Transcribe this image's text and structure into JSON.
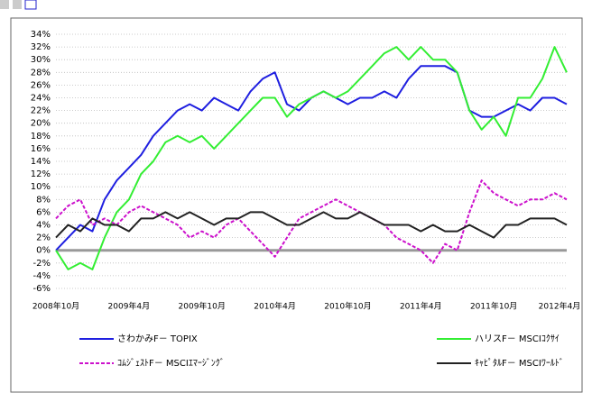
{
  "chart_data": {
    "type": "line",
    "categories": [
      "2008年10月",
      null,
      null,
      null,
      null,
      null,
      "2009年4月",
      null,
      null,
      null,
      null,
      null,
      "2009年10月",
      null,
      null,
      null,
      null,
      null,
      "2010年4月",
      null,
      null,
      null,
      null,
      null,
      "2010年10月",
      null,
      null,
      null,
      null,
      null,
      "2011年4月",
      null,
      null,
      null,
      null,
      null,
      "2011年10月",
      null,
      null,
      null,
      null,
      null,
      "2012年4月"
    ],
    "ylim": [
      -6,
      34
    ],
    "yticks": [
      {
        "value": -6,
        "label": "-6%"
      },
      {
        "value": -4,
        "label": "-4%"
      },
      {
        "value": -2,
        "label": "-2%"
      },
      {
        "value": 0,
        "label": "0%"
      },
      {
        "value": 2,
        "label": "2%"
      },
      {
        "value": 4,
        "label": "4%"
      },
      {
        "value": 6,
        "label": "6%"
      },
      {
        "value": 8,
        "label": "8%"
      },
      {
        "value": 10,
        "label": "10%"
      },
      {
        "value": 12,
        "label": "12%"
      },
      {
        "value": 14,
        "label": "14%"
      },
      {
        "value": 16,
        "label": "16%"
      },
      {
        "value": 18,
        "label": "18%"
      },
      {
        "value": 20,
        "label": "20%"
      },
      {
        "value": 22,
        "label": "22%"
      },
      {
        "value": 24,
        "label": "24%"
      },
      {
        "value": 26,
        "label": "26%"
      },
      {
        "value": 28,
        "label": "28%"
      },
      {
        "value": 30,
        "label": "30%"
      },
      {
        "value": 32,
        "label": "32%"
      },
      {
        "value": 34,
        "label": "34%"
      }
    ],
    "grid": true,
    "series": [
      {
        "name": "さわかみF－ TOPIX",
        "color": "#1f1fe0",
        "dashed": false,
        "values": [
          0,
          2,
          4,
          3,
          8,
          11,
          13,
          15,
          18,
          20,
          22,
          23,
          22,
          24,
          23,
          22,
          25,
          27,
          28,
          23,
          22,
          24,
          25,
          24,
          23,
          24,
          24,
          25,
          24,
          27,
          29,
          29,
          29,
          28,
          22,
          21,
          21,
          22,
          23,
          22,
          24,
          24,
          23
        ]
      },
      {
        "name": "ハリスF－ MSCIｺｸｻｲ",
        "color": "#33ee33",
        "dashed": false,
        "values": [
          0,
          -3,
          -2,
          -3,
          2,
          6,
          8,
          12,
          14,
          17,
          18,
          17,
          18,
          16,
          18,
          20,
          22,
          24,
          24,
          21,
          23,
          24,
          25,
          24,
          25,
          27,
          29,
          31,
          32,
          30,
          32,
          30,
          30,
          28,
          22,
          19,
          21,
          18,
          24,
          24,
          27,
          32,
          28
        ]
      },
      {
        "name": "ｺﾑｼﾞｪｽﾄF－ MSCIｴﾏｰｼﾞﾝｸﾞ",
        "color": "#cc11cc",
        "dashed": true,
        "values": [
          5,
          7,
          8,
          4,
          5,
          4,
          6,
          7,
          6,
          5,
          4,
          2,
          3,
          2,
          4,
          5,
          3,
          1,
          -1,
          2,
          5,
          6,
          7,
          8,
          7,
          6,
          5,
          4,
          2,
          1,
          0,
          -2,
          1,
          0,
          6,
          11,
          9,
          8,
          7,
          8,
          8,
          9,
          8
        ]
      },
      {
        "name": "ｷｬﾋﾟﾀﾙF－ MSCIﾜｰﾙﾄﾞ",
        "color": "#222222",
        "dashed": false,
        "values": [
          2,
          4,
          3,
          5,
          4,
          4,
          3,
          5,
          5,
          6,
          5,
          6,
          5,
          4,
          5,
          5,
          6,
          6,
          5,
          4,
          4,
          5,
          6,
          5,
          5,
          6,
          5,
          4,
          4,
          4,
          3,
          4,
          3,
          3,
          4,
          3,
          2,
          4,
          4,
          5,
          5,
          5,
          4
        ]
      }
    ]
  }
}
